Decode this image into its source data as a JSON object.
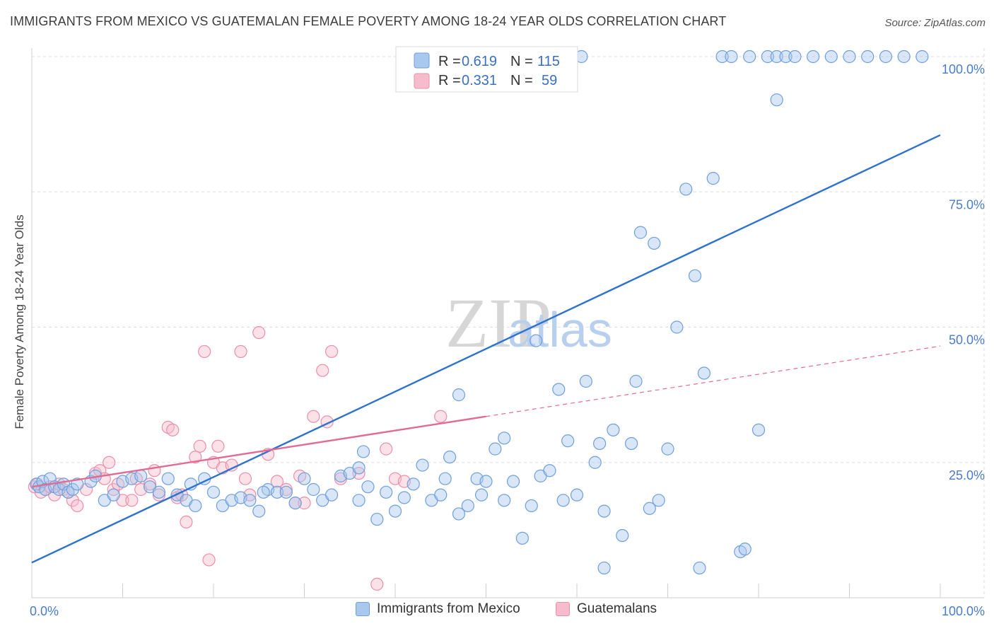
{
  "title": "IMMIGRANTS FROM MEXICO VS GUATEMALAN FEMALE POVERTY AMONG 18-24 YEAR OLDS CORRELATION CHART",
  "source": "Source: ZipAtlas.com",
  "watermark": {
    "zip": "ZIP",
    "atlas": "atlas"
  },
  "legend": {
    "rows": [
      {
        "r_label": "R =",
        "r_value": "0.619",
        "n_label": "N =",
        "n_value": "115"
      },
      {
        "r_label": "R =",
        "r_value": "0.331",
        "n_label": "N =",
        "n_value": "59"
      }
    ]
  },
  "bottom_legend": [
    "Immigrants from Mexico",
    "Guatemalans"
  ],
  "colors": {
    "blue_fill": "#a9c8ee",
    "blue_stroke": "#6f9fdc",
    "blue_line": "#2e72cf",
    "pink_fill": "#f6bccd",
    "pink_stroke": "#ea8fab",
    "pink_line": "#e36a93",
    "tick_text": "#4a7cc9"
  },
  "chart_data": {
    "type": "scatter",
    "title": "IMMIGRANTS FROM MEXICO VS GUATEMALAN FEMALE POVERTY AMONG 18-24 YEAR OLDS CORRELATION CHART",
    "xlabel": "",
    "ylabel": "Female Poverty Among 18-24 Year Olds",
    "xlim": [
      0,
      100
    ],
    "ylim": [
      0,
      100
    ],
    "x_tick_labels": [
      "0.0%",
      "100.0%"
    ],
    "y_tick_labels": [
      "25.0%",
      "50.0%",
      "75.0%",
      "100.0%"
    ],
    "y_ticks": [
      25,
      50,
      75,
      100
    ],
    "grid": true,
    "legend_position": "top-center",
    "series": [
      {
        "name": "Immigrants from Mexico",
        "r": 0.619,
        "n": 115,
        "trend": {
          "x0": 0,
          "y0": 6.5,
          "x1": 100,
          "y1": 85.5
        },
        "points": [
          [
            0.5,
            21
          ],
          [
            0.8,
            20.5
          ],
          [
            1.2,
            21.5
          ],
          [
            1.5,
            20
          ],
          [
            2,
            22
          ],
          [
            2.5,
            20.5
          ],
          [
            3,
            20
          ],
          [
            3.5,
            21
          ],
          [
            4,
            19.5
          ],
          [
            4.5,
            20
          ],
          [
            5,
            21
          ],
          [
            6.5,
            21.5
          ],
          [
            7,
            22.5
          ],
          [
            8,
            18
          ],
          [
            9,
            19
          ],
          [
            10,
            21.5
          ],
          [
            11,
            22
          ],
          [
            12,
            22.5
          ],
          [
            13,
            20.5
          ],
          [
            14,
            19.5
          ],
          [
            15,
            22
          ],
          [
            16,
            19
          ],
          [
            17,
            18
          ],
          [
            17.5,
            21
          ],
          [
            18,
            17
          ],
          [
            19,
            22
          ],
          [
            20,
            19.5
          ],
          [
            21,
            17
          ],
          [
            22,
            18
          ],
          [
            23,
            18.5
          ],
          [
            24,
            18
          ],
          [
            25,
            16
          ],
          [
            26,
            20
          ],
          [
            27,
            19.5
          ],
          [
            28,
            19.5
          ],
          [
            29,
            17.5
          ],
          [
            30,
            22
          ],
          [
            31,
            20
          ],
          [
            32,
            18
          ],
          [
            33,
            19
          ],
          [
            34,
            22.5
          ],
          [
            35,
            23
          ],
          [
            36,
            24
          ],
          [
            36.5,
            27
          ],
          [
            37,
            20.5
          ],
          [
            38,
            14.5
          ],
          [
            39,
            19.5
          ],
          [
            40,
            16
          ],
          [
            41,
            18.5
          ],
          [
            42,
            21
          ],
          [
            43,
            24.5
          ],
          [
            44,
            18
          ],
          [
            45,
            19
          ],
          [
            45.5,
            22
          ],
          [
            46,
            26
          ],
          [
            47,
            15.5
          ],
          [
            48,
            17
          ],
          [
            49,
            22
          ],
          [
            49.5,
            19
          ],
          [
            50,
            21.5
          ],
          [
            51,
            27.5
          ],
          [
            52,
            29.5
          ],
          [
            53,
            21.5
          ],
          [
            54,
            11
          ],
          [
            55,
            17
          ],
          [
            55.5,
            47.5
          ],
          [
            56,
            22.5
          ],
          [
            57,
            23.5
          ],
          [
            58,
            38.5
          ],
          [
            58.5,
            18
          ],
          [
            59,
            29
          ],
          [
            60,
            19
          ],
          [
            61,
            40
          ],
          [
            62,
            25
          ],
          [
            62.5,
            28.5
          ],
          [
            63,
            5.5
          ],
          [
            64,
            31
          ],
          [
            65,
            11.5
          ],
          [
            66,
            28.5
          ],
          [
            66.5,
            40
          ],
          [
            67,
            67.5
          ],
          [
            68,
            16.5
          ],
          [
            68.5,
            65.5
          ],
          [
            70,
            27.5
          ],
          [
            71,
            50
          ],
          [
            72,
            75.5
          ],
          [
            73,
            59.5
          ],
          [
            73.5,
            5.5
          ],
          [
            74,
            41.5
          ],
          [
            75,
            77.5
          ],
          [
            76,
            100
          ],
          [
            77,
            100
          ],
          [
            78,
            8.5
          ],
          [
            78.5,
            9
          ],
          [
            79,
            100
          ],
          [
            80,
            31
          ],
          [
            81,
            100
          ],
          [
            82,
            100
          ],
          [
            83,
            100
          ],
          [
            84,
            100
          ],
          [
            86,
            100
          ],
          [
            88,
            100
          ],
          [
            90,
            100
          ],
          [
            92,
            100
          ],
          [
            94,
            100
          ],
          [
            96,
            100
          ],
          [
            98,
            100
          ],
          [
            60.5,
            100
          ],
          [
            63,
            16
          ],
          [
            82,
            92
          ],
          [
            69,
            18
          ],
          [
            52,
            18
          ],
          [
            36,
            18
          ],
          [
            47,
            37.5
          ],
          [
            25.5,
            19.5
          ]
        ]
      },
      {
        "name": "Guatemalans",
        "r": 0.331,
        "n": 59,
        "trend_solid": {
          "x0": 0,
          "y0": 20.5,
          "x1": 50,
          "y1": 33.5
        },
        "trend_dashed": {
          "x0": 50,
          "y0": 33.5,
          "x1": 100,
          "y1": 46.5
        },
        "points": [
          [
            0.3,
            20.5
          ],
          [
            0.6,
            21
          ],
          [
            1,
            19.5
          ],
          [
            1.5,
            20
          ],
          [
            2,
            20.5
          ],
          [
            2.5,
            19
          ],
          [
            3,
            21
          ],
          [
            3.5,
            20
          ],
          [
            4,
            19.5
          ],
          [
            4.5,
            18
          ],
          [
            5,
            17
          ],
          [
            6,
            20
          ],
          [
            7,
            23
          ],
          [
            7.5,
            23.5
          ],
          [
            8,
            22
          ],
          [
            8.5,
            25
          ],
          [
            9,
            20
          ],
          [
            9.5,
            21
          ],
          [
            10,
            18
          ],
          [
            11,
            18
          ],
          [
            11.5,
            22
          ],
          [
            12,
            20
          ],
          [
            13,
            21
          ],
          [
            13.5,
            23.5
          ],
          [
            14,
            19
          ],
          [
            15,
            31.5
          ],
          [
            15.5,
            31
          ],
          [
            16,
            18.5
          ],
          [
            16.5,
            19
          ],
          [
            17,
            14
          ],
          [
            18,
            26
          ],
          [
            18.5,
            28
          ],
          [
            19,
            45.5
          ],
          [
            19.5,
            7
          ],
          [
            20,
            25
          ],
          [
            20.5,
            28
          ],
          [
            21,
            24
          ],
          [
            22,
            24.5
          ],
          [
            23,
            45.5
          ],
          [
            23.5,
            22
          ],
          [
            24,
            19
          ],
          [
            25,
            49
          ],
          [
            26,
            26.5
          ],
          [
            27,
            21.5
          ],
          [
            28,
            20
          ],
          [
            29,
            17.5
          ],
          [
            29.5,
            22.5
          ],
          [
            30,
            17.5
          ],
          [
            31,
            33.5
          ],
          [
            32,
            42
          ],
          [
            32.5,
            32.5
          ],
          [
            33,
            45.5
          ],
          [
            34,
            22
          ],
          [
            36,
            23
          ],
          [
            38,
            2.5
          ],
          [
            39,
            27.5
          ],
          [
            40,
            22
          ],
          [
            41,
            21.5
          ],
          [
            45,
            33.5
          ]
        ]
      }
    ]
  }
}
